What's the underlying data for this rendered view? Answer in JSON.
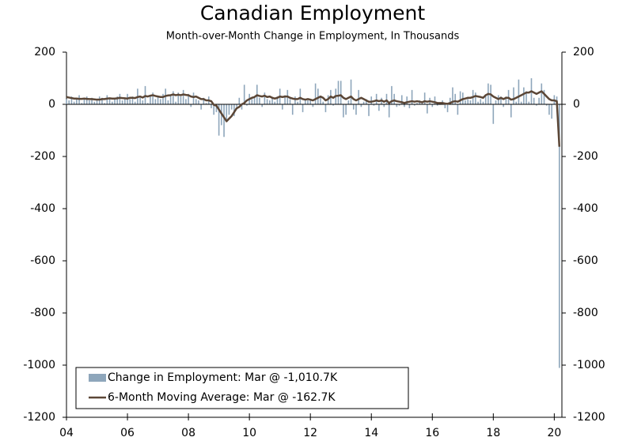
{
  "chart_data": {
    "type": "bar-line",
    "title": "Canadian Employment",
    "subtitle": "Month-over-Month Change in Employment, In Thousands",
    "x": [
      2004,
      2004.083,
      2004.167,
      2004.25,
      2004.333,
      2004.417,
      2004.5,
      2004.583,
      2004.667,
      2004.75,
      2004.833,
      2004.917,
      2005,
      2005.083,
      2005.167,
      2005.25,
      2005.333,
      2005.417,
      2005.5,
      2005.583,
      2005.667,
      2005.75,
      2005.833,
      2005.917,
      2006,
      2006.083,
      2006.167,
      2006.25,
      2006.333,
      2006.417,
      2006.5,
      2006.583,
      2006.667,
      2006.75,
      2006.833,
      2006.917,
      2007,
      2007.083,
      2007.167,
      2007.25,
      2007.333,
      2007.417,
      2007.5,
      2007.583,
      2007.667,
      2007.75,
      2007.833,
      2007.917,
      2008,
      2008.083,
      2008.167,
      2008.25,
      2008.333,
      2008.417,
      2008.5,
      2008.583,
      2008.667,
      2008.75,
      2008.833,
      2008.917,
      2009,
      2009.083,
      2009.167,
      2009.25,
      2009.333,
      2009.417,
      2009.5,
      2009.583,
      2009.667,
      2009.75,
      2009.833,
      2009.917,
      2010,
      2010.083,
      2010.167,
      2010.25,
      2010.333,
      2010.417,
      2010.5,
      2010.583,
      2010.667,
      2010.75,
      2010.833,
      2010.917,
      2011,
      2011.083,
      2011.167,
      2011.25,
      2011.333,
      2011.417,
      2011.5,
      2011.583,
      2011.667,
      2011.75,
      2011.833,
      2011.917,
      2012,
      2012.083,
      2012.167,
      2012.25,
      2012.333,
      2012.417,
      2012.5,
      2012.583,
      2012.667,
      2012.75,
      2012.833,
      2012.917,
      2013,
      2013.083,
      2013.167,
      2013.25,
      2013.333,
      2013.417,
      2013.5,
      2013.583,
      2013.667,
      2013.75,
      2013.833,
      2013.917,
      2014,
      2014.083,
      2014.167,
      2014.25,
      2014.333,
      2014.417,
      2014.5,
      2014.583,
      2014.667,
      2014.75,
      2014.833,
      2014.917,
      2015,
      2015.083,
      2015.167,
      2015.25,
      2015.333,
      2015.417,
      2015.5,
      2015.583,
      2015.667,
      2015.75,
      2015.833,
      2015.917,
      2016,
      2016.083,
      2016.167,
      2016.25,
      2016.333,
      2016.417,
      2016.5,
      2016.583,
      2016.667,
      2016.75,
      2016.833,
      2016.917,
      2017,
      2017.083,
      2017.167,
      2017.25,
      2017.333,
      2017.417,
      2017.5,
      2017.583,
      2017.667,
      2017.75,
      2017.833,
      2017.917,
      2018,
      2018.083,
      2018.167,
      2018.25,
      2018.333,
      2018.417,
      2018.5,
      2018.583,
      2018.667,
      2018.75,
      2018.833,
      2018.917,
      2019,
      2019.083,
      2019.167,
      2019.25,
      2019.333,
      2019.417,
      2019.5,
      2019.583,
      2019.667,
      2019.75,
      2019.833,
      2019.917,
      2020,
      2020.083,
      2020.167
    ],
    "series": [
      {
        "name": "Change in Employment: Mar @ -1,010.7K",
        "color": "#8ea6bb",
        "kind": "bar",
        "values": [
          20,
          15,
          30,
          10,
          25,
          35,
          5,
          20,
          30,
          15,
          25,
          10,
          15,
          30,
          25,
          5,
          35,
          20,
          10,
          25,
          30,
          40,
          15,
          20,
          40,
          20,
          30,
          10,
          60,
          25,
          15,
          70,
          5,
          30,
          45,
          20,
          30,
          20,
          40,
          60,
          15,
          35,
          50,
          10,
          45,
          30,
          55,
          20,
          40,
          -10,
          45,
          20,
          15,
          -20,
          25,
          5,
          30,
          -15,
          -40,
          -30,
          -120,
          -80,
          -125,
          -60,
          -40,
          -20,
          -45,
          -10,
          25,
          -20,
          75,
          -5,
          40,
          20,
          30,
          75,
          25,
          -10,
          45,
          20,
          15,
          25,
          10,
          30,
          60,
          -20,
          35,
          55,
          20,
          -40,
          30,
          10,
          60,
          -30,
          20,
          15,
          20,
          -10,
          80,
          60,
          30,
          10,
          -30,
          35,
          55,
          -5,
          60,
          90,
          90,
          -50,
          -40,
          15,
          95,
          -20,
          -40,
          55,
          -10,
          10,
          20,
          -45,
          30,
          -5,
          40,
          -25,
          25,
          -10,
          40,
          -50,
          70,
          40,
          -10,
          -5,
          35,
          -10,
          30,
          -15,
          55,
          -5,
          5,
          15,
          10,
          45,
          -35,
          25,
          -10,
          30,
          -5,
          -2,
          15,
          -15,
          -30,
          25,
          65,
          40,
          -40,
          50,
          45,
          15,
          20,
          15,
          55,
          45,
          10,
          20,
          10,
          35,
          80,
          75,
          -75,
          15,
          35,
          30,
          -10,
          30,
          55,
          -50,
          65,
          10,
          95,
          10,
          65,
          50,
          10,
          100,
          25,
          -5,
          25,
          80,
          55,
          -5,
          -40,
          -55,
          35,
          30,
          -1010.7
        ]
      },
      {
        "name": "6-Month Moving Average: Mar @ -162.7K",
        "color": "#5b4636",
        "kind": "line",
        "values": [
          28,
          26,
          24,
          22,
          22,
          21,
          21,
          22,
          21,
          20,
          20,
          19,
          18,
          18,
          20,
          20,
          22,
          23,
          22,
          22,
          23,
          25,
          24,
          23,
          22,
          25,
          25,
          24,
          28,
          30,
          26,
          32,
          30,
          33,
          35,
          32,
          30,
          28,
          28,
          32,
          34,
          35,
          38,
          35,
          37,
          35,
          38,
          36,
          35,
          30,
          28,
          30,
          25,
          20,
          20,
          15,
          15,
          12,
          -2,
          -5,
          -20,
          -35,
          -50,
          -65,
          -55,
          -45,
          -30,
          -15,
          -10,
          0,
          5,
          15,
          20,
          25,
          28,
          35,
          32,
          30,
          33,
          28,
          30,
          25,
          22,
          25,
          30,
          28,
          30,
          30,
          25,
          22,
          20,
          20,
          25,
          20,
          18,
          20,
          18,
          15,
          20,
          25,
          30,
          25,
          15,
          20,
          30,
          25,
          32,
          33,
          35,
          25,
          20,
          25,
          30,
          20,
          15,
          20,
          25,
          20,
          15,
          10,
          10,
          12,
          15,
          12,
          15,
          10,
          15,
          5,
          12,
          15,
          12,
          10,
          8,
          5,
          8,
          10,
          12,
          10,
          12,
          10,
          8,
          12,
          10,
          12,
          10,
          8,
          5,
          5,
          5,
          3,
          2,
          5,
          10,
          12,
          10,
          15,
          20,
          22,
          25,
          25,
          28,
          32,
          30,
          28,
          25,
          35,
          40,
          38,
          30,
          25,
          20,
          25,
          20,
          25,
          25,
          18,
          20,
          25,
          30,
          35,
          40,
          45,
          45,
          50,
          45,
          40,
          45,
          50,
          40,
          30,
          20,
          15,
          15,
          12,
          -162.7
        ]
      }
    ],
    "xlim": [
      2004,
      2020.25
    ],
    "xticks": [
      {
        "value": 2004,
        "label": "04"
      },
      {
        "value": 2006,
        "label": "06"
      },
      {
        "value": 2008,
        "label": "08"
      },
      {
        "value": 2010,
        "label": "10"
      },
      {
        "value": 2012,
        "label": "12"
      },
      {
        "value": 2014,
        "label": "14"
      },
      {
        "value": 2016,
        "label": "16"
      },
      {
        "value": 2018,
        "label": "18"
      },
      {
        "value": 2020,
        "label": "20"
      }
    ],
    "ylim": [
      -1200,
      200
    ],
    "yticks": [
      -1200,
      -1000,
      -800,
      -600,
      -400,
      -200,
      0,
      200
    ],
    "y2lim": [
      -1200,
      200
    ],
    "y2ticks": [
      -1200,
      -1000,
      -800,
      -600,
      -400,
      -200,
      0,
      200
    ],
    "legend": "lower left",
    "grid": false
  }
}
